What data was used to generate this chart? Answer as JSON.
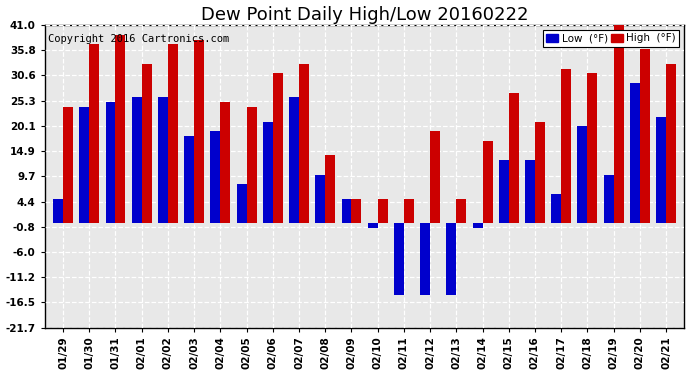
{
  "title": "Dew Point Daily High/Low 20160222",
  "copyright": "Copyright 2016 Cartronics.com",
  "dates": [
    "01/29",
    "01/30",
    "01/31",
    "02/01",
    "02/02",
    "02/03",
    "02/04",
    "02/05",
    "02/06",
    "02/07",
    "02/08",
    "02/09",
    "02/10",
    "02/11",
    "02/12",
    "02/13",
    "02/14",
    "02/15",
    "02/16",
    "02/17",
    "02/18",
    "02/19",
    "02/20",
    "02/21"
  ],
  "high": [
    24,
    37,
    39,
    33,
    37,
    38,
    25,
    24,
    31,
    33,
    14,
    5,
    5,
    5,
    19,
    5,
    17,
    27,
    21,
    32,
    31,
    41,
    36,
    33
  ],
  "low": [
    5,
    24,
    25,
    26,
    26,
    18,
    19,
    8,
    21,
    26,
    10,
    5,
    -1,
    -15,
    -15,
    -15,
    -1,
    13,
    13,
    6,
    20,
    10,
    29,
    22
  ],
  "high_color": "#cc0000",
  "low_color": "#0000cc",
  "bg_color": "#ffffff",
  "plot_bg_color": "#e8e8e8",
  "grid_color": "#aaaaaa",
  "ylim_min": -21.7,
  "ylim_max": 41.0,
  "yticks": [
    41.0,
    35.8,
    30.6,
    25.3,
    20.1,
    14.9,
    9.7,
    4.4,
    -0.8,
    -6.0,
    -11.2,
    -16.5,
    -21.7
  ],
  "title_fontsize": 13,
  "copyright_fontsize": 7.5,
  "tick_fontsize": 7.5,
  "legend_label_low": "Low  (°F)",
  "legend_label_high": "High  (°F)",
  "bar_width": 0.38
}
